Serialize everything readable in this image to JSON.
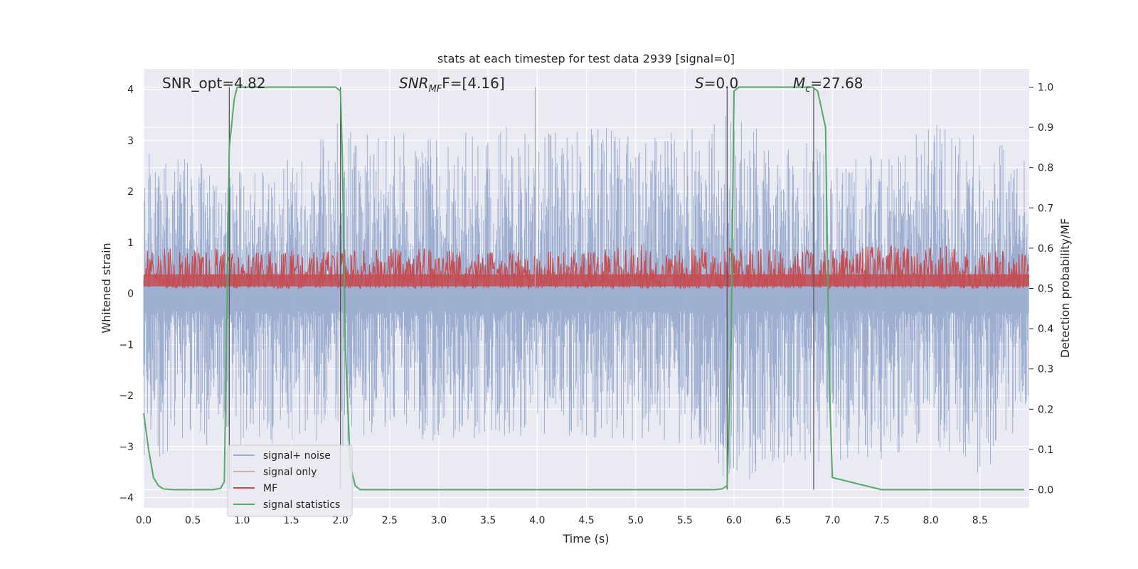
{
  "chart_data": {
    "type": "line",
    "title": "stats at each timestep for test data 2939 [signal=0]",
    "xlabel": "Time (s)",
    "ylabel": "Whitened strain",
    "y2label": "Detection probability/MF",
    "xlim": [
      0,
      9
    ],
    "ylim": [
      -4.2,
      4.4
    ],
    "y2lim": [
      -0.045,
      1.045
    ],
    "x_ticks": [
      "0.0",
      "0.5",
      "1.0",
      "1.5",
      "2.0",
      "2.5",
      "3.0",
      "3.5",
      "4.0",
      "4.5",
      "5.0",
      "5.5",
      "6.0",
      "6.5",
      "7.0",
      "7.5",
      "8.0",
      "8.5"
    ],
    "y_ticks": [
      "4",
      "3",
      "2",
      "1",
      "0",
      "−1",
      "−2",
      "−3",
      "−4"
    ],
    "y2_ticks": [
      "1.0",
      "0.9",
      "0.8",
      "0.7",
      "0.6",
      "0.5",
      "0.4",
      "0.3",
      "0.2",
      "0.1",
      "0.0"
    ],
    "grid": true,
    "legend_position": "bottom-left",
    "annotations": {
      "snr_opt": "SNR_opt=4.82",
      "snr_mf_main": "SNR",
      "snr_mf_sub": "MF",
      "snr_mf_rest": "F=[4.16]",
      "s_main": "S",
      "s_rest": "=0.0",
      "mc_main": "M",
      "mc_sub": "c",
      "mc_rest": "=27.68"
    },
    "series": [
      {
        "name": "signal+ noise",
        "color": "#9aaccf",
        "axis": "left",
        "description_values": "whitened strain noise, approx range -3.8 to 3.8",
        "envelope_samples_x": [
          0.0,
          0.5,
          1.0,
          1.5,
          2.0,
          2.5,
          3.0,
          3.5,
          4.0,
          4.5,
          5.0,
          5.5,
          6.0,
          6.5,
          7.0,
          7.5,
          8.0,
          8.5,
          9.0
        ],
        "envelope_samples_max": [
          2.8,
          2.6,
          2.4,
          2.8,
          3.6,
          3.2,
          3.0,
          3.3,
          3.2,
          3.4,
          3.1,
          3.2,
          3.6,
          3.0,
          2.9,
          2.8,
          3.3,
          3.3,
          2.6
        ],
        "envelope_samples_min": [
          -3.3,
          -3.0,
          -3.1,
          -2.9,
          -3.0,
          -2.8,
          -2.9,
          -2.9,
          -2.8,
          -2.8,
          -2.9,
          -3.0,
          -3.8,
          -3.4,
          -3.3,
          -3.3,
          -2.9,
          -3.6,
          -2.5
        ]
      },
      {
        "name": "signal only",
        "color": "#e6a98f",
        "axis": "left",
        "values": []
      },
      {
        "name": "MF",
        "color": "#c44e52",
        "axis": "right",
        "description_values": "matched filter, approx range 0.50 to 0.61 (detection-probability axis)",
        "envelope_samples_x": [
          0.0,
          1.0,
          2.0,
          3.0,
          4.0,
          4.9,
          6.0,
          7.0,
          8.0,
          9.0
        ],
        "envelope_samples_max": [
          0.6,
          0.6,
          0.6,
          0.6,
          0.59,
          0.61,
          0.6,
          0.6,
          0.61,
          0.59
        ],
        "envelope_samples_min": [
          0.5,
          0.5,
          0.5,
          0.5,
          0.5,
          0.5,
          0.5,
          0.5,
          0.5,
          0.5
        ]
      },
      {
        "name": "signal statistics",
        "color": "#55a868",
        "axis": "right",
        "x": [
          0.0,
          0.05,
          0.1,
          0.15,
          0.2,
          0.3,
          0.5,
          0.7,
          0.78,
          0.82,
          0.87,
          0.92,
          0.95,
          1.0,
          1.5,
          1.95,
          2.0,
          2.02,
          2.05,
          2.1,
          2.15,
          2.2,
          3.0,
          4.0,
          5.0,
          5.8,
          5.88,
          5.93,
          5.97,
          6.0,
          6.05,
          6.5,
          6.8,
          6.85,
          6.93,
          6.97,
          7.0,
          7.5,
          8.0,
          8.5,
          8.95
        ],
        "values": [
          0.19,
          0.1,
          0.03,
          0.01,
          0.002,
          0.0,
          0.0,
          0.0,
          0.003,
          0.02,
          0.85,
          0.97,
          1.0,
          1.0,
          1.0,
          1.0,
          0.99,
          0.82,
          0.35,
          0.06,
          0.01,
          0.0,
          0.0,
          0.0,
          0.0,
          0.0,
          0.002,
          0.01,
          0.35,
          0.99,
          1.0,
          1.0,
          1.0,
          0.99,
          0.9,
          0.25,
          0.03,
          0.0,
          0.0,
          0.0,
          0.0
        ]
      }
    ],
    "vertical_markers": [
      {
        "x": 0.87,
        "ymin": 0.0,
        "ymax": 1.0,
        "color": "#555555"
      },
      {
        "x": 2.0,
        "ymin": 0.0,
        "ymax": 1.0,
        "color": "#555555"
      },
      {
        "x": 3.98,
        "ymin": 0.5,
        "ymax": 1.0,
        "color": "#a9a9a9"
      },
      {
        "x": 5.93,
        "ymin": 0.0,
        "ymax": 1.0,
        "color": "#555555"
      },
      {
        "x": 6.81,
        "ymin": 0.0,
        "ymax": 1.0,
        "color": "#555555"
      }
    ]
  }
}
